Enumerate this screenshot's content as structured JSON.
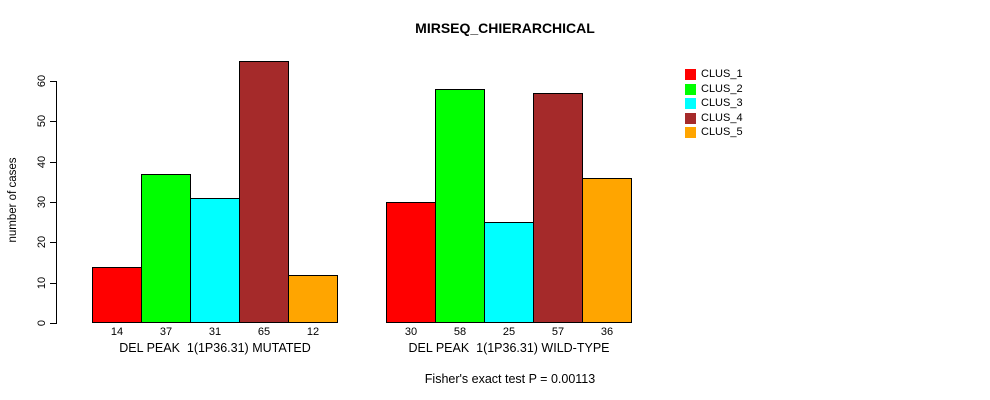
{
  "chart_data": {
    "type": "bar",
    "title": "MIRSEQ_CHIERARCHICAL",
    "ylabel": "number of cases",
    "xlabel": "",
    "ylim": [
      0,
      60
    ],
    "yticks": [
      0,
      10,
      20,
      30,
      40,
      50,
      60
    ],
    "grid": false,
    "legend_position": "right",
    "categories": [
      "DEL PEAK  1(1P36.31) MUTATED",
      "DEL PEAK  1(1P36.31) WILD-TYPE"
    ],
    "series": [
      {
        "name": "CLUS_1",
        "color": "#FF0000",
        "values": [
          14,
          30
        ]
      },
      {
        "name": "CLUS_2",
        "color": "#00FF00",
        "values": [
          37,
          58
        ]
      },
      {
        "name": "CLUS_3",
        "color": "#00FFFF",
        "values": [
          31,
          25
        ]
      },
      {
        "name": "CLUS_4",
        "color": "#A52A2A",
        "values": [
          65,
          57
        ]
      },
      {
        "name": "CLUS_5",
        "color": "#FFA500",
        "values": [
          12,
          36
        ]
      }
    ],
    "annotation": "Fisher's exact test P = 0.00113"
  }
}
